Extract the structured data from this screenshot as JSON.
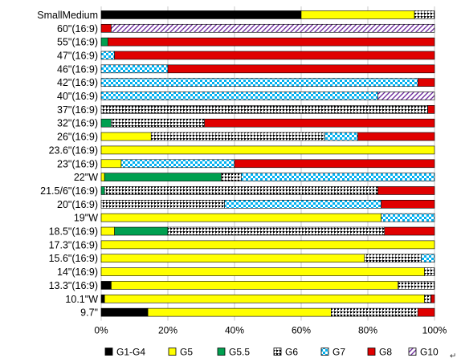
{
  "chart_data": {
    "type": "bar",
    "orientation": "horizontal",
    "stacked": true,
    "categories": [
      "SmallMedium",
      "60\"(16:9)",
      "55\"(16:9)",
      "47\"(16:9)",
      "46\"(16:9)",
      "42\"(16:9)",
      "40\"(16:9)",
      "37\"(16:9)",
      "32\"(16:9)",
      "26\"(16:9)",
      "23.6\"(16:9)",
      "23\"(16:9)",
      "22\"W",
      "21.5/6\"(16:9)",
      "20\"(16:9)",
      "19\"W",
      "18.5\"(16:9)",
      "17.3\"(16:9)",
      "15.6\"(16:9)",
      "14\"(16:9)",
      "13.3\"(16:9)",
      "10.1\"W",
      "9.7\""
    ],
    "series": [
      {
        "name": "G1-G4",
        "color": "#000000",
        "pattern": "solid",
        "values": [
          60,
          0,
          0,
          0,
          0,
          0,
          0,
          0,
          0,
          0,
          0,
          0,
          0,
          0,
          0,
          0,
          0,
          0,
          0,
          0,
          3,
          1,
          14
        ]
      },
      {
        "name": "G5",
        "color": "#ffff00",
        "pattern": "solid",
        "values": [
          34,
          0,
          0,
          0,
          0,
          0,
          0,
          0,
          0,
          15,
          100,
          6,
          1,
          0,
          0,
          84,
          4,
          100,
          79,
          97,
          86,
          96,
          55
        ]
      },
      {
        "name": "G5.5",
        "color": "#00a050",
        "pattern": "solid",
        "values": [
          0,
          0,
          2,
          0,
          0,
          0,
          0,
          0,
          3,
          0,
          0,
          0,
          35,
          1,
          0,
          0,
          16,
          0,
          0,
          0,
          0,
          0,
          0
        ]
      },
      {
        "name": "G6",
        "color": "#000000",
        "pattern": "grid",
        "values": [
          6,
          0,
          0,
          0,
          0,
          0,
          0,
          98,
          28,
          52,
          0,
          0,
          6,
          82,
          37,
          0,
          65,
          0,
          17,
          3,
          11,
          2,
          26
        ]
      },
      {
        "name": "G7",
        "color": "#00b0f0",
        "pattern": "checker",
        "values": [
          0,
          0,
          0,
          4,
          20,
          95,
          83,
          0,
          0,
          10,
          0,
          34,
          58,
          0,
          47,
          16,
          0,
          0,
          4,
          0,
          0,
          0,
          0
        ]
      },
      {
        "name": "G8",
        "color": "#e00000",
        "pattern": "solid",
        "values": [
          0,
          3,
          98,
          96,
          80,
          5,
          0,
          2,
          69,
          23,
          0,
          60,
          0,
          17,
          16,
          0,
          15,
          0,
          0,
          0,
          0,
          1,
          5
        ]
      },
      {
        "name": "G10",
        "color": "#7030a0",
        "pattern": "diagonal",
        "values": [
          0,
          97,
          0,
          0,
          0,
          0,
          17,
          0,
          0,
          0,
          0,
          0,
          0,
          0,
          0,
          0,
          0,
          0,
          0,
          0,
          0,
          0,
          0
        ]
      }
    ],
    "x_ticks": [
      "0%",
      "20%",
      "40%",
      "60%",
      "80%",
      "100%"
    ],
    "xlim": [
      0,
      100
    ],
    "grid": true,
    "legend_position": "bottom",
    "trailing_mark": "↵"
  }
}
